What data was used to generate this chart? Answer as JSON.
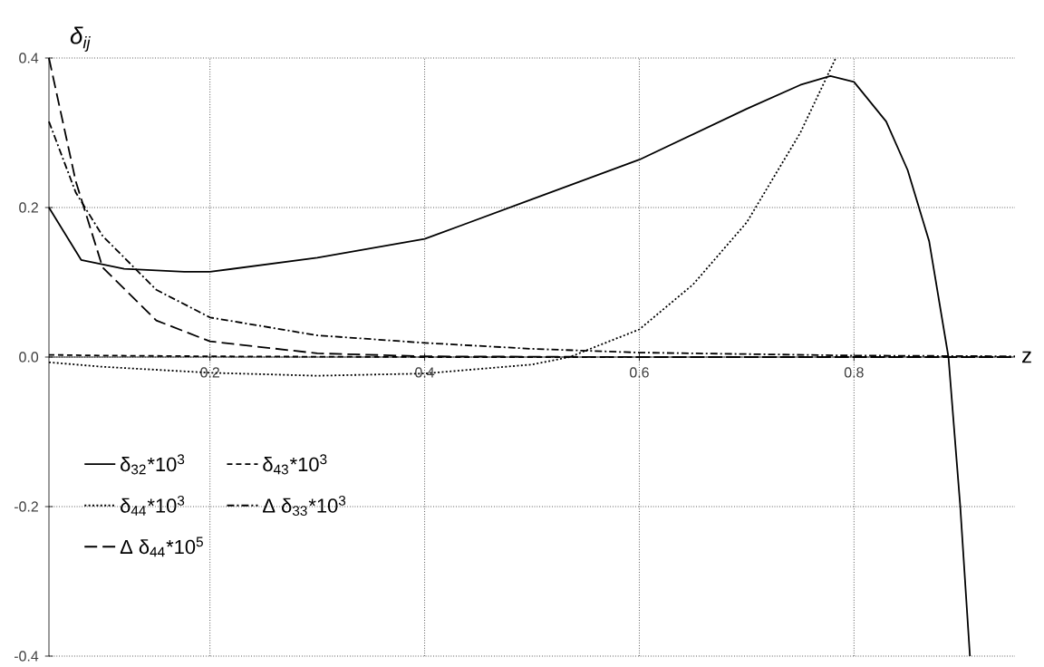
{
  "chart_data": {
    "type": "line",
    "xlabel": "z",
    "ylabel": "δ$_{ij}$",
    "xlim": [
      0.05,
      0.95
    ],
    "ylim": [
      -0.4,
      0.4
    ],
    "xticks": [
      0.2,
      0.4,
      0.6,
      0.8
    ],
    "yticks": [
      -0.4,
      -0.2,
      {
        "value": 0,
        "label": "0.0"
      },
      0.2,
      0.4
    ],
    "grid": true,
    "legend": "bottom left",
    "series": [
      {
        "name": "δ$_{32}$*10$^{3}$",
        "color": "#000000",
        "line_style": "solid",
        "x": [
          0.05,
          0.08,
          0.12,
          0.176,
          0.2,
          0.3,
          0.4,
          0.5,
          0.6,
          0.7,
          0.75,
          0.778,
          0.8,
          0.83,
          0.85,
          0.87,
          0.888,
          0.899,
          0.908
        ],
        "values": [
          0.2,
          0.13,
          0.118,
          0.114,
          0.114,
          0.133,
          0.158,
          0.211,
          0.264,
          0.332,
          0.364,
          0.376,
          0.368,
          0.315,
          0.25,
          0.155,
          0.0,
          -0.2,
          -0.4
        ]
      },
      {
        "name": "δ$_{43}$*10$^{3}$",
        "color": "#000000",
        "line_style": "dashed",
        "x": [
          0.05,
          0.1,
          0.2,
          0.4,
          0.6,
          0.8,
          0.95
        ],
        "values": [
          0.003,
          0.002,
          0.001,
          0.0,
          0.0,
          0.0,
          0.0
        ]
      },
      {
        "name": "δ$_{44}$*10$^{3}$",
        "color": "#000000",
        "line_style": "dotted",
        "x": [
          0.05,
          0.1,
          0.2,
          0.3,
          0.4,
          0.5,
          0.535,
          0.6,
          0.65,
          0.7,
          0.75,
          0.783
        ],
        "values": [
          -0.007,
          -0.013,
          -0.021,
          -0.025,
          -0.022,
          -0.01,
          0.0,
          0.037,
          0.097,
          0.18,
          0.3,
          0.4
        ]
      },
      {
        "name": "Δ δ$_{33}$*10$^{3}$",
        "color": "#000000",
        "line_style": "dashdotted",
        "x": [
          0.05,
          0.075,
          0.1,
          0.15,
          0.2,
          0.3,
          0.4,
          0.5,
          0.6,
          0.8,
          0.95
        ],
        "values": [
          0.315,
          0.22,
          0.162,
          0.09,
          0.053,
          0.029,
          0.019,
          0.011,
          0.006,
          0.002,
          0.001
        ]
      },
      {
        "name": "Δ δ$_{44}$*10$^{5}$",
        "color": "#000000",
        "line_style": "longdashed",
        "x": [
          0.05,
          0.075,
          0.1,
          0.15,
          0.2,
          0.3,
          0.4,
          0.6,
          0.95
        ],
        "values": [
          0.4,
          0.235,
          0.12,
          0.049,
          0.021,
          0.005,
          0.001,
          0.0,
          0.0
        ]
      }
    ]
  }
}
